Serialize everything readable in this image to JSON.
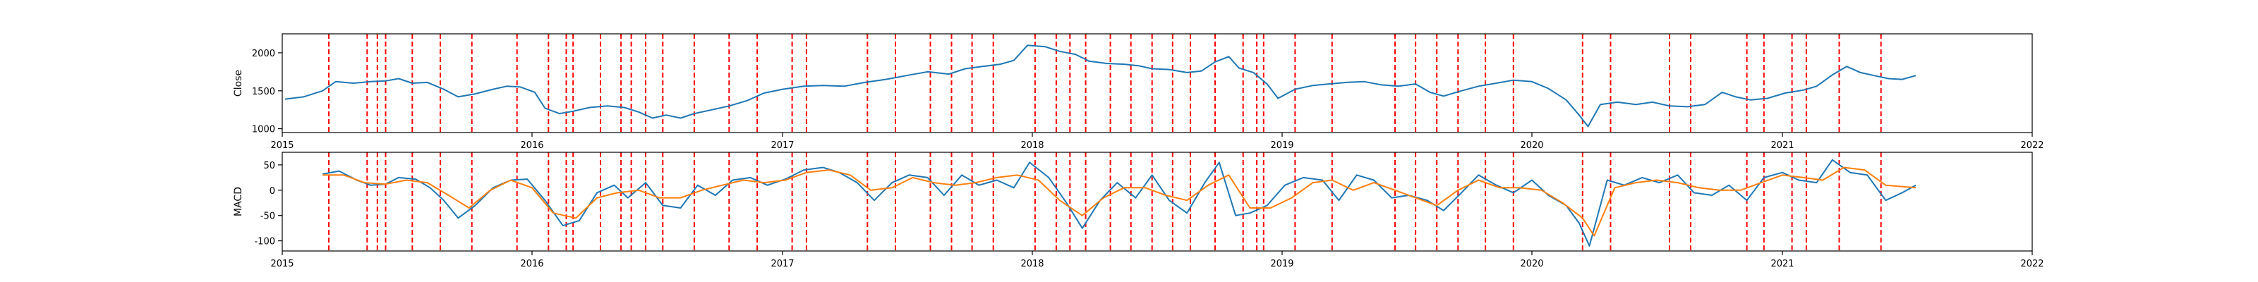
{
  "chart_data": [
    {
      "type": "line",
      "ylabel": "Close",
      "ylim": [
        950,
        2250
      ],
      "yticks": [
        1000,
        1500,
        2000
      ],
      "xlim": [
        "2015-01-01",
        "2022-01-01"
      ],
      "xticks": [
        "2015",
        "2016",
        "2017",
        "2018",
        "2019",
        "2020",
        "2021",
        "2022"
      ],
      "series": [
        {
          "color": "#1f77b4",
          "x": [
            "2015-01-05",
            "2015-02-01",
            "2015-03-01",
            "2015-03-20",
            "2015-04-15",
            "2015-05-10",
            "2015-06-01",
            "2015-06-20",
            "2015-07-10",
            "2015-08-01",
            "2015-08-25",
            "2015-09-15",
            "2015-10-10",
            "2015-11-05",
            "2015-11-25",
            "2015-12-15",
            "2016-01-05",
            "2016-01-20",
            "2016-02-10",
            "2016-03-01",
            "2016-03-25",
            "2016-04-20",
            "2016-05-15",
            "2016-06-05",
            "2016-06-25",
            "2016-07-15",
            "2016-08-05",
            "2016-08-25",
            "2016-09-20",
            "2016-10-15",
            "2016-11-10",
            "2016-12-05",
            "2017-01-01",
            "2017-02-01",
            "2017-03-01",
            "2017-04-01",
            "2017-05-01",
            "2017-06-01",
            "2017-07-01",
            "2017-08-01",
            "2017-09-01",
            "2017-09-25",
            "2017-10-20",
            "2017-11-15",
            "2017-12-05",
            "2017-12-25",
            "2018-01-20",
            "2018-02-10",
            "2018-03-05",
            "2018-03-25",
            "2018-04-20",
            "2018-05-15",
            "2018-06-05",
            "2018-06-25",
            "2018-07-20",
            "2018-08-15",
            "2018-09-05",
            "2018-09-25",
            "2018-10-15",
            "2018-10-30",
            "2018-11-20",
            "2018-12-10",
            "2018-12-26",
            "2019-01-20",
            "2019-02-15",
            "2019-03-10",
            "2019-04-05",
            "2019-05-01",
            "2019-05-25",
            "2019-06-20",
            "2019-07-15",
            "2019-08-05",
            "2019-08-25",
            "2019-09-20",
            "2019-10-15",
            "2019-11-10",
            "2019-12-05",
            "2020-01-01",
            "2020-01-25",
            "2020-02-20",
            "2020-03-10",
            "2020-03-23",
            "2020-04-10",
            "2020-05-05",
            "2020-06-01",
            "2020-06-25",
            "2020-07-20",
            "2020-08-15",
            "2020-09-10",
            "2020-10-05",
            "2020-10-25",
            "2020-11-15",
            "2020-12-10",
            "2021-01-05",
            "2021-02-01",
            "2021-02-20",
            "2021-03-15",
            "2021-04-05",
            "2021-04-25",
            "2021-05-15",
            "2021-06-05",
            "2021-06-25",
            "2021-07-15"
          ],
          "y": [
            1390,
            1420,
            1500,
            1620,
            1600,
            1620,
            1630,
            1660,
            1600,
            1610,
            1520,
            1420,
            1460,
            1520,
            1560,
            1550,
            1480,
            1270,
            1200,
            1230,
            1280,
            1300,
            1280,
            1220,
            1140,
            1180,
            1140,
            1200,
            1250,
            1300,
            1370,
            1470,
            1520,
            1560,
            1570,
            1560,
            1610,
            1650,
            1700,
            1750,
            1720,
            1790,
            1820,
            1850,
            1900,
            2100,
            2080,
            2020,
            1980,
            1890,
            1860,
            1850,
            1830,
            1790,
            1780,
            1740,
            1760,
            1880,
            1950,
            1800,
            1740,
            1590,
            1400,
            1520,
            1570,
            1590,
            1610,
            1620,
            1580,
            1560,
            1590,
            1480,
            1430,
            1500,
            1560,
            1600,
            1640,
            1620,
            1530,
            1380,
            1180,
            1030,
            1320,
            1350,
            1320,
            1350,
            1300,
            1290,
            1320,
            1480,
            1420,
            1380,
            1400,
            1470,
            1510,
            1560,
            1710,
            1820,
            1740,
            1700,
            1660,
            1650,
            1700
          ]
        }
      ],
      "vlines": [
        "2015-03-10",
        "2015-05-05",
        "2015-05-20",
        "2015-06-01",
        "2015-07-10",
        "2015-08-20",
        "2015-10-05",
        "2015-12-10",
        "2016-01-25",
        "2016-02-20",
        "2016-03-01",
        "2016-04-10",
        "2016-05-10",
        "2016-05-25",
        "2016-06-15",
        "2016-07-10",
        "2016-08-25",
        "2016-10-15",
        "2016-11-25",
        "2017-01-15",
        "2017-02-05",
        "2017-05-05",
        "2017-06-15",
        "2017-08-05",
        "2017-09-05",
        "2017-10-05",
        "2017-11-05",
        "2018-01-05",
        "2018-02-05",
        "2018-02-25",
        "2018-03-20",
        "2018-04-25",
        "2018-05-25",
        "2018-06-25",
        "2018-07-25",
        "2018-08-20",
        "2018-09-25",
        "2018-11-05",
        "2018-11-25",
        "2018-12-05",
        "2019-01-20",
        "2019-03-15",
        "2019-06-15",
        "2019-07-15",
        "2019-08-15",
        "2019-09-15",
        "2019-10-25",
        "2019-12-05",
        "2020-03-15",
        "2020-04-25",
        "2020-07-20",
        "2020-08-20",
        "2020-11-10",
        "2020-12-05",
        "2021-01-15",
        "2021-02-05",
        "2021-03-25",
        "2021-05-25"
      ]
    },
    {
      "type": "line",
      "ylabel": "MACD",
      "ylim": [
        -120,
        75
      ],
      "yticks": [
        -100,
        -50,
        0,
        50
      ],
      "xlim": [
        "2015-01-01",
        "2022-01-01"
      ],
      "xticks": [
        "2015",
        "2016",
        "2017",
        "2018",
        "2019",
        "2020",
        "2021",
        "2022"
      ],
      "series": [
        {
          "color": "#1f77b4",
          "x": [
            "2015-03-01",
            "2015-03-25",
            "2015-04-20",
            "2015-05-10",
            "2015-06-01",
            "2015-06-20",
            "2015-07-15",
            "2015-08-05",
            "2015-08-25",
            "2015-09-15",
            "2015-10-10",
            "2015-11-05",
            "2015-12-01",
            "2015-12-25",
            "2016-01-20",
            "2016-02-15",
            "2016-03-10",
            "2016-04-05",
            "2016-04-30",
            "2016-05-20",
            "2016-06-15",
            "2016-07-10",
            "2016-08-05",
            "2016-08-30",
            "2016-09-25",
            "2016-10-20",
            "2016-11-15",
            "2016-12-10",
            "2017-01-05",
            "2017-02-01",
            "2017-03-01",
            "2017-03-25",
            "2017-04-20",
            "2017-05-15",
            "2017-06-10",
            "2017-07-05",
            "2017-08-01",
            "2017-08-25",
            "2017-09-20",
            "2017-10-15",
            "2017-11-10",
            "2017-12-05",
            "2017-12-28",
            "2018-01-25",
            "2018-02-20",
            "2018-03-15",
            "2018-04-10",
            "2018-05-05",
            "2018-06-01",
            "2018-06-25",
            "2018-07-20",
            "2018-08-15",
            "2018-09-10",
            "2018-10-01",
            "2018-10-25",
            "2018-11-15",
            "2018-12-10",
            "2019-01-05",
            "2019-02-01",
            "2019-03-01",
            "2019-03-25",
            "2019-04-20",
            "2019-05-15",
            "2019-06-10",
            "2019-07-05",
            "2019-08-01",
            "2019-08-25",
            "2019-09-20",
            "2019-10-15",
            "2019-11-10",
            "2019-12-05",
            "2020-01-01",
            "2020-01-25",
            "2020-02-20",
            "2020-03-10",
            "2020-03-25",
            "2020-04-20",
            "2020-05-15",
            "2020-06-10",
            "2020-07-05",
            "2020-08-01",
            "2020-08-25",
            "2020-09-20",
            "2020-10-15",
            "2020-11-10",
            "2020-12-05",
            "2021-01-01",
            "2021-01-25",
            "2021-02-20",
            "2021-03-15",
            "2021-04-10",
            "2021-05-05",
            "2021-06-01",
            "2021-06-25",
            "2021-07-15"
          ],
          "y": [
            32,
            38,
            20,
            10,
            12,
            25,
            22,
            5,
            -20,
            -55,
            -30,
            5,
            20,
            22,
            -20,
            -70,
            -60,
            -5,
            10,
            -15,
            15,
            -30,
            -35,
            10,
            -10,
            20,
            25,
            10,
            22,
            40,
            45,
            35,
            15,
            -20,
            15,
            30,
            25,
            -10,
            30,
            10,
            20,
            5,
            55,
            25,
            -25,
            -75,
            -20,
            15,
            -15,
            30,
            -20,
            -45,
            15,
            55,
            -50,
            -45,
            -30,
            10,
            25,
            20,
            -20,
            30,
            20,
            -15,
            -10,
            -20,
            -40,
            -5,
            30,
            10,
            -5,
            20,
            -10,
            -30,
            -65,
            -110,
            20,
            10,
            25,
            15,
            30,
            -5,
            -10,
            10,
            -20,
            25,
            35,
            20,
            15,
            60,
            35,
            30,
            -20,
            -5,
            10
          ]
        },
        {
          "color": "#ff7f0e",
          "x": [
            "2015-03-01",
            "2015-04-01",
            "2015-05-01",
            "2015-06-01",
            "2015-07-01",
            "2015-08-01",
            "2015-09-01",
            "2015-10-01",
            "2015-11-01",
            "2015-12-01",
            "2016-01-01",
            "2016-02-01",
            "2016-03-05",
            "2016-04-05",
            "2016-05-05",
            "2016-06-05",
            "2016-07-05",
            "2016-08-05",
            "2016-09-05",
            "2016-10-05",
            "2016-11-05",
            "2016-12-05",
            "2017-01-05",
            "2017-02-05",
            "2017-03-10",
            "2017-04-10",
            "2017-05-10",
            "2017-06-10",
            "2017-07-10",
            "2017-08-10",
            "2017-09-10",
            "2017-10-10",
            "2017-11-10",
            "2017-12-10",
            "2018-01-10",
            "2018-02-10",
            "2018-03-15",
            "2018-04-15",
            "2018-05-15",
            "2018-06-15",
            "2018-07-15",
            "2018-08-15",
            "2018-09-15",
            "2018-10-15",
            "2018-11-15",
            "2018-12-15",
            "2019-01-15",
            "2019-02-15",
            "2019-03-15",
            "2019-04-15",
            "2019-05-15",
            "2019-06-15",
            "2019-07-15",
            "2019-08-15",
            "2019-09-15",
            "2019-10-15",
            "2019-11-15",
            "2019-12-15",
            "2020-01-15",
            "2020-02-15",
            "2020-03-15",
            "2020-04-01",
            "2020-05-01",
            "2020-06-01",
            "2020-07-01",
            "2020-08-01",
            "2020-09-01",
            "2020-10-01",
            "2020-11-01",
            "2020-12-01",
            "2021-01-01",
            "2021-02-01",
            "2021-03-01",
            "2021-04-01",
            "2021-05-01",
            "2021-06-01",
            "2021-07-15"
          ],
          "y": [
            30,
            30,
            15,
            12,
            20,
            15,
            -10,
            -35,
            0,
            20,
            5,
            -45,
            -55,
            -15,
            -5,
            0,
            -15,
            -15,
            0,
            10,
            20,
            15,
            20,
            35,
            40,
            30,
            0,
            5,
            25,
            15,
            10,
            15,
            25,
            30,
            20,
            -20,
            -50,
            -15,
            5,
            5,
            -10,
            -20,
            10,
            30,
            -35,
            -35,
            -15,
            15,
            20,
            0,
            15,
            0,
            -15,
            -30,
            0,
            20,
            5,
            5,
            0,
            -25,
            -55,
            -90,
            5,
            15,
            20,
            15,
            5,
            0,
            0,
            15,
            30,
            25,
            20,
            45,
            40,
            10,
            5
          ]
        }
      ],
      "vlines": [
        "2015-03-10",
        "2015-05-05",
        "2015-05-20",
        "2015-06-01",
        "2015-07-10",
        "2015-08-20",
        "2015-10-05",
        "2015-12-10",
        "2016-01-25",
        "2016-02-20",
        "2016-03-01",
        "2016-04-10",
        "2016-05-10",
        "2016-05-25",
        "2016-06-15",
        "2016-07-10",
        "2016-08-25",
        "2016-10-15",
        "2016-11-25",
        "2017-01-15",
        "2017-02-05",
        "2017-05-05",
        "2017-06-15",
        "2017-08-05",
        "2017-09-05",
        "2017-10-05",
        "2017-11-05",
        "2018-01-05",
        "2018-02-05",
        "2018-02-25",
        "2018-03-20",
        "2018-04-25",
        "2018-05-25",
        "2018-06-25",
        "2018-07-25",
        "2018-08-20",
        "2018-09-25",
        "2018-11-05",
        "2018-11-25",
        "2018-12-05",
        "2019-01-20",
        "2019-03-15",
        "2019-06-15",
        "2019-07-15",
        "2019-08-15",
        "2019-09-15",
        "2019-10-25",
        "2019-12-05",
        "2020-03-15",
        "2020-04-25",
        "2020-07-20",
        "2020-08-20",
        "2020-11-10",
        "2020-12-05",
        "2021-01-15",
        "2021-02-05",
        "2021-03-25",
        "2021-05-25"
      ]
    }
  ],
  "colors": {
    "vline": "#ff0000",
    "axes": "#000000",
    "background": "#ffffff"
  }
}
